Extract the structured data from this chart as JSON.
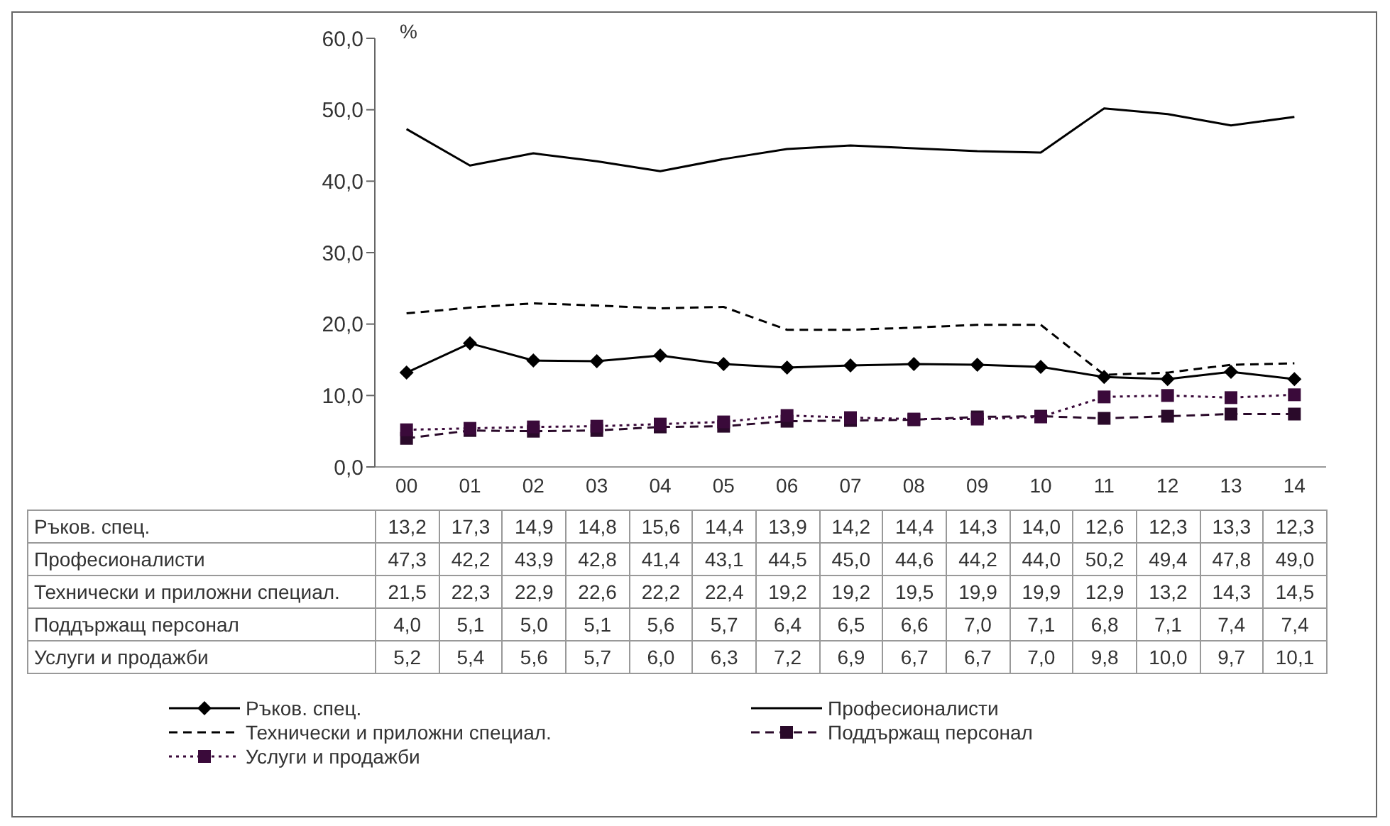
{
  "chart_data": {
    "type": "line",
    "ylabel": "%",
    "categories": [
      "00",
      "01",
      "02",
      "03",
      "04",
      "05",
      "06",
      "07",
      "08",
      "09",
      "10",
      "11",
      "12",
      "13",
      "14"
    ],
    "ylim": [
      0,
      60
    ],
    "yticks": [
      {
        "value": 0,
        "label": "0,0"
      },
      {
        "value": 10,
        "label": "10,0"
      },
      {
        "value": 20,
        "label": "20,0"
      },
      {
        "value": 30,
        "label": "30,0"
      },
      {
        "value": 40,
        "label": "40,0"
      },
      {
        "value": 50,
        "label": "50,0"
      },
      {
        "value": 60,
        "label": "60,0"
      }
    ],
    "grid": false,
    "legend": "bottom",
    "series": [
      {
        "name": "Ръков. спец.",
        "color": "#000000",
        "marker": "diamond",
        "line_style": "solid",
        "values": [
          13.2,
          17.3,
          14.9,
          14.8,
          15.6,
          14.4,
          13.9,
          14.2,
          14.4,
          14.3,
          14.0,
          12.6,
          12.3,
          13.3,
          12.3
        ],
        "value_labels": [
          "13,2",
          "17,3",
          "14,9",
          "14,8",
          "15,6",
          "14,4",
          "13,9",
          "14,2",
          "14,4",
          "14,3",
          "14,0",
          "12,6",
          "12,3",
          "13,3",
          "12,3"
        ]
      },
      {
        "name": "Професионалисти",
        "color": "#000000",
        "marker": "none",
        "line_style": "solid",
        "values": [
          47.3,
          42.2,
          43.9,
          42.8,
          41.4,
          43.1,
          44.5,
          45.0,
          44.6,
          44.2,
          44.0,
          50.2,
          49.4,
          47.8,
          49.0
        ],
        "value_labels": [
          "47,3",
          "42,2",
          "43,9",
          "42,8",
          "41,4",
          "43,1",
          "44,5",
          "45,0",
          "44,6",
          "44,2",
          "44,0",
          "50,2",
          "49,4",
          "47,8",
          "49,0"
        ]
      },
      {
        "name": "Технически и приложни специал.",
        "color": "#000000",
        "marker": "none",
        "line_style": "dashed",
        "values": [
          21.5,
          22.3,
          22.9,
          22.6,
          22.2,
          22.4,
          19.2,
          19.2,
          19.5,
          19.9,
          19.9,
          12.9,
          13.2,
          14.3,
          14.5
        ],
        "value_labels": [
          "21,5",
          "22,3",
          "22,9",
          "22,6",
          "22,2",
          "22,4",
          "19,2",
          "19,2",
          "19,5",
          "19,9",
          "19,9",
          "12,9",
          "13,2",
          "14,3",
          "14,5"
        ]
      },
      {
        "name": "Поддържащ персонал",
        "color": "#2a0a2a",
        "marker": "square",
        "line_style": "dashed",
        "values": [
          4.0,
          5.1,
          5.0,
          5.1,
          5.6,
          5.7,
          6.4,
          6.5,
          6.6,
          7.0,
          7.1,
          6.8,
          7.1,
          7.4,
          7.4
        ],
        "value_labels": [
          "4,0",
          "5,1",
          "5,0",
          "5,1",
          "5,6",
          "5,7",
          "6,4",
          "6,5",
          "6,6",
          "7,0",
          "7,1",
          "6,8",
          "7,1",
          "7,4",
          "7,4"
        ]
      },
      {
        "name": "Услуги и продажби",
        "color": "#3a0a3a",
        "marker": "square",
        "line_style": "dotted",
        "values": [
          5.2,
          5.4,
          5.6,
          5.7,
          6.0,
          6.3,
          7.2,
          6.9,
          6.7,
          6.7,
          7.0,
          9.8,
          10.0,
          9.7,
          10.1
        ],
        "value_labels": [
          "5,2",
          "5,4",
          "5,6",
          "5,7",
          "6,0",
          "6,3",
          "7,2",
          "6,9",
          "6,7",
          "6,7",
          "7,0",
          "9,8",
          "10,0",
          "9,7",
          "10,1"
        ]
      }
    ]
  }
}
